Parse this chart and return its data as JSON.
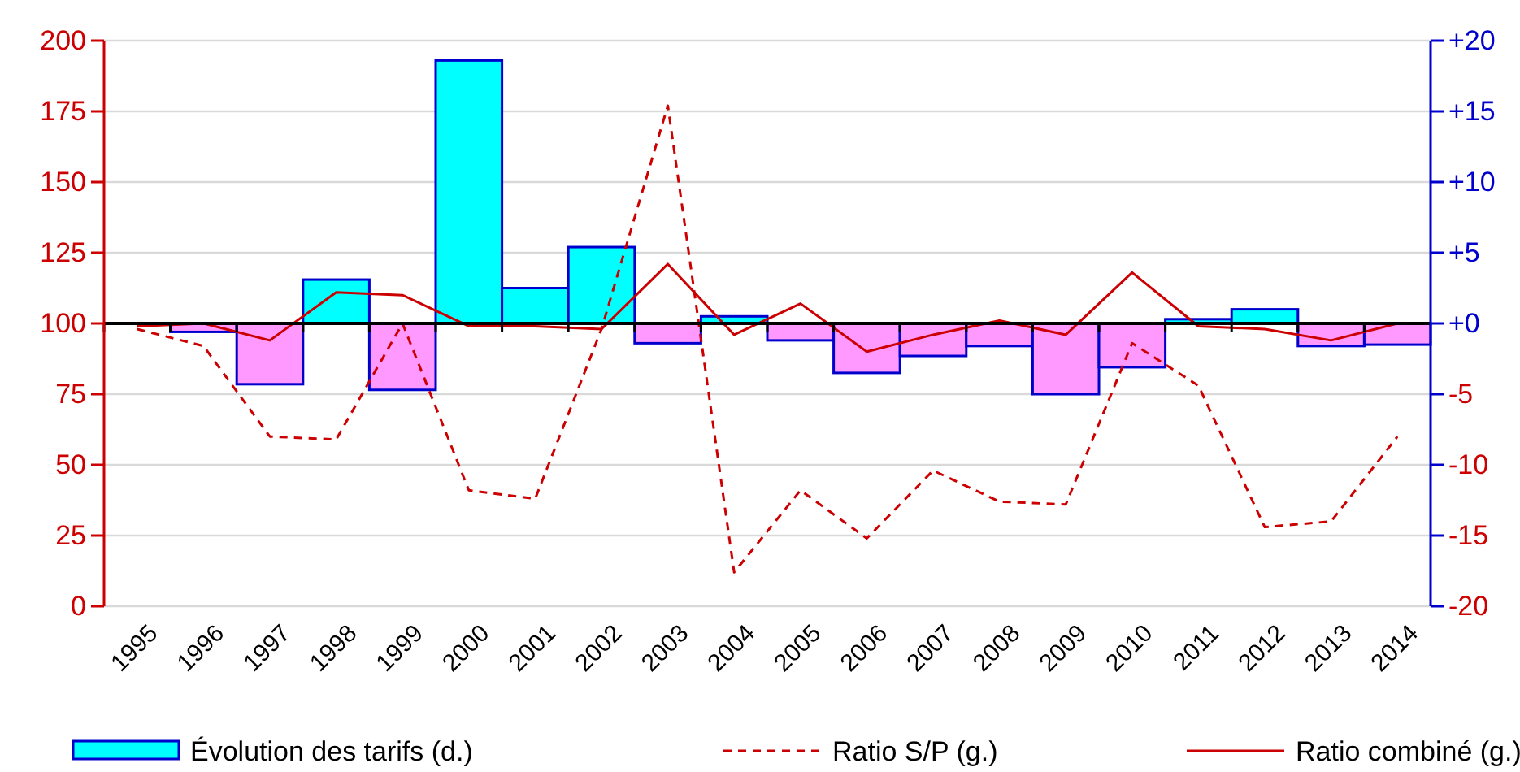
{
  "chart_data": {
    "type": "bar",
    "categories": [
      "1995",
      "1996",
      "1997",
      "1998",
      "1999",
      "2000",
      "2001",
      "2002",
      "2003",
      "2004",
      "2005",
      "2006",
      "2007",
      "2008",
      "2009",
      "2010",
      "2011",
      "2012",
      "2013",
      "2014"
    ],
    "series": [
      {
        "name": "Évolution des tarifs (d.)",
        "axis": "y2",
        "color": "#00ffff",
        "colors": [
          "#00ffff",
          "#ff99ff",
          "#ff99ff",
          "#00ffff",
          "#ff99ff",
          "#00ffff",
          "#00ffff",
          "#00ffff",
          "#ff99ff",
          "#00ffff",
          "#ff99ff",
          "#ff99ff",
          "#ff99ff",
          "#ff99ff",
          "#ff99ff",
          "#ff99ff",
          "#00ffff",
          "#00ffff",
          "#ff99ff",
          "#ff99ff"
        ],
        "values": [
          0,
          -0.6,
          -4.3,
          3.1,
          -4.7,
          18.6,
          2.5,
          5.4,
          -1.4,
          0.5,
          -1.2,
          -3.5,
          -2.3,
          -1.6,
          -5.0,
          -3.1,
          0.3,
          1.0,
          -1.6,
          -1.5
        ]
      },
      {
        "name": "Ratio S/P (g.)",
        "type": "line",
        "line_style": "dashed",
        "color": "#cc0000",
        "values": [
          98,
          92,
          60,
          59,
          100,
          41,
          38,
          98,
          177,
          12,
          41,
          24,
          48,
          37,
          36,
          93,
          78,
          28,
          30,
          60
        ]
      },
      {
        "name": "Ratio combiné (g.)",
        "type": "line",
        "line_style": "solid",
        "color": "#cc0000",
        "values": [
          99,
          100,
          94,
          111,
          110,
          99,
          99,
          98,
          121,
          96,
          107,
          90,
          96,
          101,
          96,
          118,
          99,
          98,
          94,
          100
        ]
      }
    ],
    "ylim": [
      0,
      200
    ],
    "yticks": [
      0,
      25,
      50,
      75,
      100,
      125,
      150,
      175,
      200
    ],
    "y2lim": [
      -20,
      20
    ],
    "y2ticks": [
      {
        "value": -20,
        "label": "-20"
      },
      {
        "value": -15,
        "label": "-15"
      },
      {
        "value": -10,
        "label": "-10"
      },
      {
        "value": -5,
        "label": "-5"
      },
      {
        "value": 0,
        "label": "+0"
      },
      {
        "value": 5,
        "label": "+5"
      },
      {
        "value": 10,
        "label": "+10"
      },
      {
        "value": 15,
        "label": "+15"
      },
      {
        "value": 20,
        "label": "+20"
      }
    ],
    "ref_lines": [
      {
        "axis": "y2",
        "value": 0,
        "color": "#000000"
      }
    ],
    "grid": "y",
    "legend": "bottom",
    "marker": "none"
  }
}
